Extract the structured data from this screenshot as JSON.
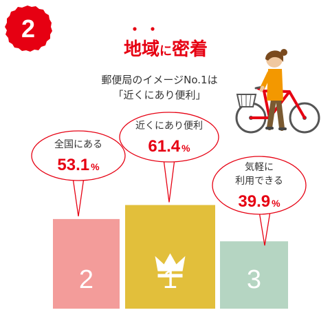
{
  "badge": {
    "number": "2"
  },
  "heading": {
    "main": "地域",
    "particle": "に",
    "rest": "密着"
  },
  "subtitle": {
    "line1": "郵便局のイメージNo.1は",
    "line2": "「近くにあり便利」"
  },
  "colors": {
    "badge": "#e60012",
    "accent": "#e60012",
    "text": "#333333",
    "bar_first": "#e2bf3b",
    "bar_second": "#f39c9a",
    "bar_third": "#b5d5c2",
    "bubble_border": "#e60012",
    "rank_text": "#ffffff"
  },
  "chart_data": {
    "type": "bar",
    "unit": "%",
    "ylim": [
      0,
      65
    ],
    "items": [
      {
        "rank": "2",
        "label_lines": [
          "全国にある"
        ],
        "value": 53.1,
        "value_text": "53.1",
        "color": "#f39c9a"
      },
      {
        "rank": "1",
        "label_lines": [
          "近くにあり便利"
        ],
        "value": 61.4,
        "value_text": "61.4",
        "color": "#e2bf3b"
      },
      {
        "rank": "3",
        "label_lines": [
          "気軽に",
          "利用できる"
        ],
        "value": 39.9,
        "value_text": "39.9",
        "color": "#b5d5c2"
      }
    ],
    "winner_icon": "crown-icon",
    "illustration": "woman-with-bicycle-icon"
  }
}
